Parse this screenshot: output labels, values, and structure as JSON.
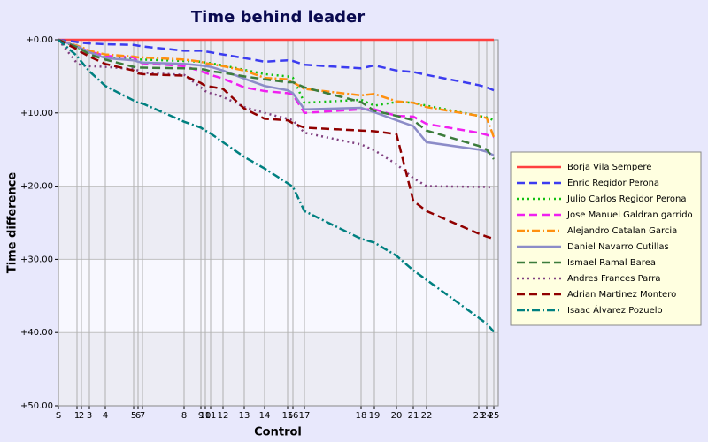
{
  "chart_data": {
    "type": "line",
    "title": "Time behind leader",
    "x_label": "Control",
    "y_label": "Time difference",
    "y_inverted": true,
    "grid": true,
    "x": [
      0,
      21,
      26,
      35,
      53,
      85,
      90,
      95,
      142,
      161,
      166,
      172,
      186,
      210,
      233,
      259,
      265,
      278,
      342,
      357,
      382,
      401,
      416,
      475,
      484,
      492
    ],
    "xlim": [
      0,
      497
    ],
    "xticks": [
      {
        "value": 0,
        "label": "S"
      },
      {
        "value": 21,
        "label": "1"
      },
      {
        "value": 26,
        "label": "2"
      },
      {
        "value": 35,
        "label": "3"
      },
      {
        "value": 53,
        "label": "4"
      },
      {
        "value": 85,
        "label": "5"
      },
      {
        "value": 90,
        "label": "6"
      },
      {
        "value": 95,
        "label": "7"
      },
      {
        "value": 142,
        "label": "8"
      },
      {
        "value": 161,
        "label": "9"
      },
      {
        "value": 166,
        "label": "10"
      },
      {
        "value": 172,
        "label": "11"
      },
      {
        "value": 186,
        "label": "12"
      },
      {
        "value": 210,
        "label": "13"
      },
      {
        "value": 233,
        "label": "14"
      },
      {
        "value": 259,
        "label": "15"
      },
      {
        "value": 265,
        "label": "16"
      },
      {
        "value": 278,
        "label": "17"
      },
      {
        "value": 342,
        "label": "18"
      },
      {
        "value": 357,
        "label": "19"
      },
      {
        "value": 382,
        "label": "20"
      },
      {
        "value": 401,
        "label": "21"
      },
      {
        "value": 416,
        "label": "22"
      },
      {
        "value": 475,
        "label": "23"
      },
      {
        "value": 484,
        "label": "24"
      },
      {
        "value": 492,
        "label": "25"
      }
    ],
    "ylim": [
      0,
      50
    ],
    "yticks": [
      {
        "value": 0,
        "label": "+0.00"
      },
      {
        "value": 10,
        "label": "+10.00"
      },
      {
        "value": 20,
        "label": "+20.00"
      },
      {
        "value": 30,
        "label": "+30.00"
      },
      {
        "value": 40,
        "label": "+40.00"
      },
      {
        "value": 50,
        "label": "+50.00"
      }
    ],
    "series": [
      {
        "name": "Borja Vila Sempere",
        "color": "#ff4040",
        "dash": "none",
        "values": [
          0,
          0,
          0,
          0,
          0,
          0,
          0,
          0,
          0,
          0,
          0,
          0,
          0,
          0,
          0,
          0,
          0,
          0,
          0,
          0,
          0,
          0,
          0,
          0,
          0,
          0
        ]
      },
      {
        "name": "Enric Regidor Perona",
        "color": "#3c3cf0",
        "dash": "9,5",
        "values": [
          0,
          0.3,
          0.4,
          0.5,
          0.6,
          0.7,
          0.8,
          0.9,
          1.5,
          1.5,
          1.6,
          1.7,
          2.0,
          2.5,
          3.0,
          2.8,
          2.9,
          3.4,
          3.9,
          3.5,
          4.2,
          4.4,
          4.8,
          6.2,
          6.5,
          6.9
        ]
      },
      {
        "name": "Julio Carlos Regidor Perona",
        "color": "#10c010",
        "dash": "2,4",
        "values": [
          0,
          1.0,
          1.3,
          1.8,
          2.4,
          2.6,
          2.7,
          2.7,
          2.9,
          3.0,
          3.1,
          3.2,
          3.5,
          4.1,
          4.7,
          5.0,
          5.2,
          8.6,
          8.2,
          9.0,
          8.5,
          8.6,
          9.0,
          10.4,
          10.6,
          11.0
        ]
      },
      {
        "name": "Jose Manuel Galdran garrido",
        "color": "#f020f0",
        "dash": "9,5",
        "values": [
          0,
          1.0,
          1.2,
          1.6,
          2.2,
          2.4,
          3.0,
          3.2,
          3.6,
          4.3,
          4.5,
          4.8,
          5.3,
          6.5,
          7.0,
          7.3,
          7.5,
          10.0,
          9.5,
          9.5,
          10.4,
          10.5,
          11.5,
          12.7,
          13.0,
          13.3
        ]
      },
      {
        "name": "Alejandro Catalan Garcia",
        "color": "#ff9010",
        "dash": "9,3,2,3",
        "values": [
          0,
          0.8,
          1.0,
          1.5,
          2.0,
          2.3,
          2.4,
          2.4,
          2.7,
          3.0,
          3.2,
          3.3,
          3.6,
          4.2,
          5.2,
          5.4,
          5.8,
          6.7,
          7.6,
          7.4,
          8.4,
          8.6,
          9.2,
          10.4,
          10.7,
          13.3
        ]
      },
      {
        "name": "Daniel Navarro Cutillas",
        "color": "#8c8cc8",
        "dash": "none",
        "values": [
          0,
          0.9,
          1.2,
          1.7,
          2.5,
          2.8,
          3.0,
          3.1,
          3.3,
          3.5,
          3.6,
          3.7,
          4.2,
          5.3,
          6.3,
          6.9,
          7.3,
          9.5,
          9.3,
          9.9,
          11.0,
          11.8,
          14.0,
          15.0,
          15.3,
          15.8
        ]
      },
      {
        "name": "Ismael Ramal Barea",
        "color": "#3c7c3c",
        "dash": "9,5",
        "values": [
          0,
          1.0,
          1.3,
          2.0,
          2.7,
          3.7,
          3.8,
          3.8,
          3.9,
          4.0,
          4.1,
          4.3,
          4.5,
          5.0,
          5.4,
          5.8,
          5.8,
          6.5,
          8.5,
          9.7,
          10.4,
          11.0,
          12.4,
          14.5,
          15.0,
          16.3
        ]
      },
      {
        "name": "Andres Frances Parra",
        "color": "#804080",
        "dash": "2,4",
        "values": [
          0,
          3.2,
          3.5,
          3.6,
          3.7,
          4.0,
          4.2,
          4.5,
          4.8,
          6.5,
          7.0,
          7.3,
          7.8,
          9.2,
          10.0,
          10.8,
          11.0,
          12.7,
          14.3,
          15.1,
          17.0,
          18.9,
          20.0,
          20.1,
          20.1,
          20.2
        ]
      },
      {
        "name": "Adrian Martinez Montero",
        "color": "#900000",
        "dash": "9,5",
        "values": [
          0,
          1.3,
          1.7,
          2.3,
          3.3,
          4.2,
          4.6,
          4.7,
          4.9,
          5.9,
          6.3,
          6.4,
          6.7,
          9.4,
          10.8,
          11.0,
          11.4,
          12.0,
          12.4,
          12.5,
          12.9,
          22.0,
          23.4,
          26.5,
          26.9,
          27.2
        ]
      },
      {
        "name": "Isaac Álvarez Pozuelo",
        "color": "#008080",
        "dash": "9,3,2,3",
        "values": [
          0,
          2.2,
          3.0,
          4.3,
          6.3,
          8.3,
          8.6,
          8.7,
          11.2,
          12.0,
          12.4,
          12.8,
          14.0,
          16.0,
          17.6,
          19.6,
          20.1,
          23.4,
          27.2,
          27.7,
          29.5,
          31.5,
          32.8,
          38.0,
          38.8,
          39.9
        ]
      }
    ]
  }
}
